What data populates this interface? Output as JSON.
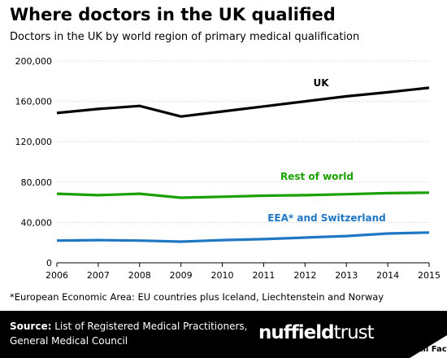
{
  "header": {
    "title": "Where doctors in the UK qualified",
    "subtitle": "Doctors in the UK by world region of primary medical qualification"
  },
  "chart_data": {
    "type": "line",
    "x": [
      2006,
      2007,
      2008,
      2009,
      2010,
      2011,
      2012,
      2013,
      2014,
      2015
    ],
    "x_tick_labels": [
      "2006",
      "2007",
      "2008",
      "2009",
      "2010",
      "2011",
      "2012",
      "2013",
      "2014",
      "2015"
    ],
    "y_ticks": [
      0,
      40000,
      80000,
      120000,
      160000,
      200000
    ],
    "y_tick_labels": [
      "0",
      "40,000",
      "80,000",
      "120,000",
      "160,000",
      "200,000"
    ],
    "ylim": [
      0,
      200000
    ],
    "grid": true,
    "series": [
      {
        "name": "UK",
        "color": "#000000",
        "values": [
          148500,
          152500,
          155500,
          145000,
          150000,
          155000,
          160000,
          165000,
          169000,
          173500
        ]
      },
      {
        "name": "Rest of world",
        "color": "#1aa000",
        "values": [
          68500,
          67000,
          68500,
          64500,
          65500,
          66500,
          67000,
          68000,
          69000,
          69500
        ]
      },
      {
        "name": "EEA* and Switzerland",
        "color": "#1f77c4",
        "values": [
          22000,
          22500,
          22000,
          21000,
          22500,
          23500,
          25000,
          26500,
          29000,
          30000
        ]
      }
    ]
  },
  "footnote": "*European Economic Area: EU countries plus Iceland, Liechtenstein and Norway",
  "footer": {
    "source_label": "Source:",
    "source_line1": " List of Registered Medical Practitioners,",
    "source_line2": "General Medical Council",
    "logo_part1": "nuffield",
    "logo_part2": "trust",
    "fullfact_label": "Full Fact"
  }
}
